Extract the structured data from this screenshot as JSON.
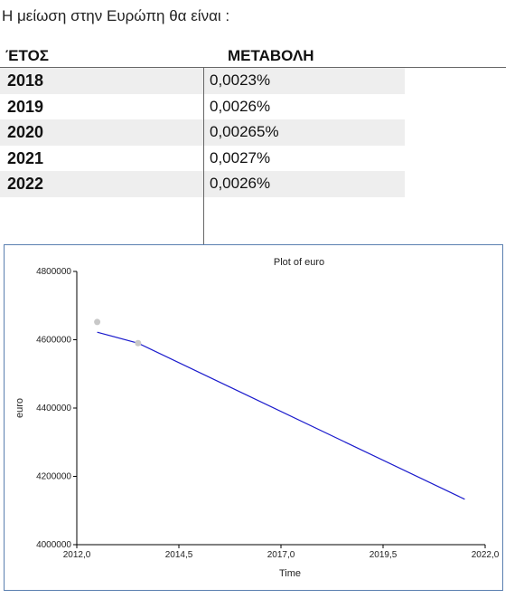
{
  "intro": "Η μείωση στην Ευρώπη θα είναι :",
  "table": {
    "headers": [
      "ΈΤΟΣ",
      "ΜΕΤΑΒΟΛΗ"
    ],
    "rows": [
      {
        "year": "2018",
        "change": "0,0023%"
      },
      {
        "year": "2019",
        "change": "0,0026%"
      },
      {
        "year": "2020",
        "change": "0,00265%"
      },
      {
        "year": "2021",
        "change": "0,0027%"
      },
      {
        "year": "2022",
        "change": "0,0026%"
      }
    ]
  },
  "chart_data": {
    "type": "line",
    "title": "Plot of euro",
    "xlabel": "Time",
    "ylabel": "euro",
    "xlim": [
      2012.0,
      2022.0
    ],
    "ylim": [
      4000000,
      4800000
    ],
    "xticks": [
      "2012,0",
      "2014,5",
      "2017,0",
      "2019,5",
      "2022,0"
    ],
    "yticks": [
      "4000000",
      "4200000",
      "4400000",
      "4600000",
      "4800000"
    ],
    "xtick_values": [
      2012.0,
      2014.5,
      2017.0,
      2019.5,
      2022.0
    ],
    "ytick_values": [
      4000000,
      4200000,
      4400000,
      4600000,
      4800000
    ],
    "series": [
      {
        "type": "line",
        "x": [
          2012.5,
          2013.5,
          2021.5
        ],
        "y": [
          4622000,
          4590000,
          4133000
        ],
        "color": "#1a1acc"
      },
      {
        "type": "scatter",
        "x": [
          2012.5,
          2013.5
        ],
        "y": [
          4652000,
          4590000
        ],
        "color": "#c8c8c8"
      }
    ]
  }
}
